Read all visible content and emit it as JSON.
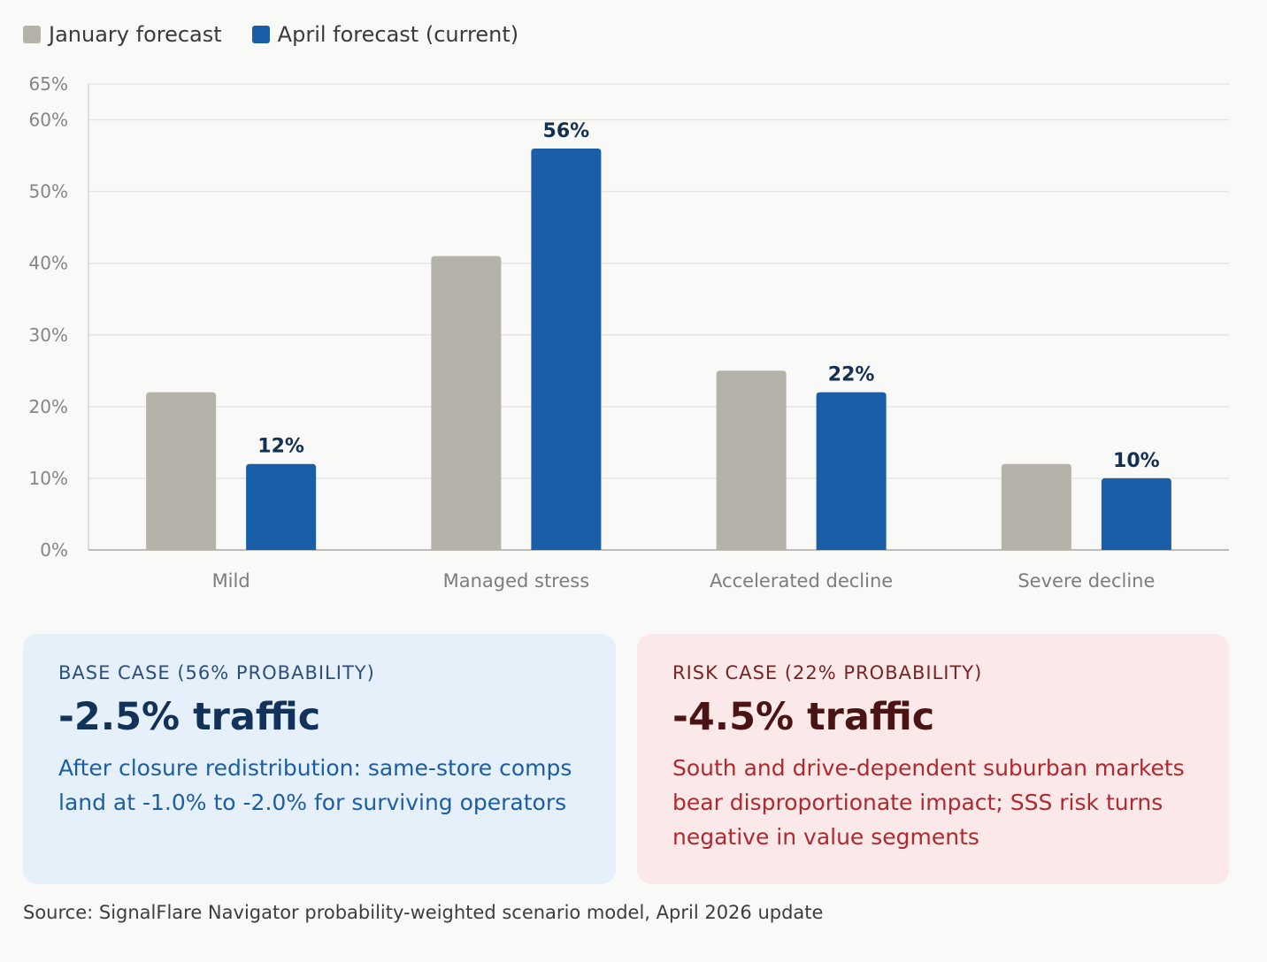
{
  "legend": {
    "items": [
      {
        "label": "January forecast",
        "color": "#b5b2aa"
      },
      {
        "label": "April forecast (current)",
        "color": "#1a5ea7"
      }
    ]
  },
  "chart_data": {
    "type": "bar",
    "categories": [
      "Mild",
      "Managed stress",
      "Accelerated decline",
      "Severe decline"
    ],
    "series": [
      {
        "name": "January forecast",
        "color": "#b5b2aa",
        "values": [
          22,
          41,
          25,
          12
        ],
        "show_labels": false
      },
      {
        "name": "April forecast (current)",
        "color": "#1a5ea7",
        "values": [
          12,
          56,
          22,
          10
        ],
        "show_labels": true
      }
    ],
    "y_ticks": [
      0,
      10,
      20,
      30,
      40,
      50,
      60,
      65
    ],
    "y_tick_suffix": "%",
    "ylim": [
      0,
      65
    ],
    "grid": true,
    "xlabel": "",
    "ylabel": ""
  },
  "cards": {
    "base": {
      "label": "Base case (56% probability)",
      "value": "-2.5% traffic",
      "description": "After closure redistribution: same-store comps land at -1.0% to -2.0% for surviving operators"
    },
    "risk": {
      "label": "Risk case (22% probability)",
      "value": "-4.5% traffic",
      "description": "South and drive-dependent suburban markets bear disproportionate impact; SSS risk turns negative in value segments"
    }
  },
  "source": "Source: SignalFlare Navigator probability-weighted scenario model, April 2026 update"
}
